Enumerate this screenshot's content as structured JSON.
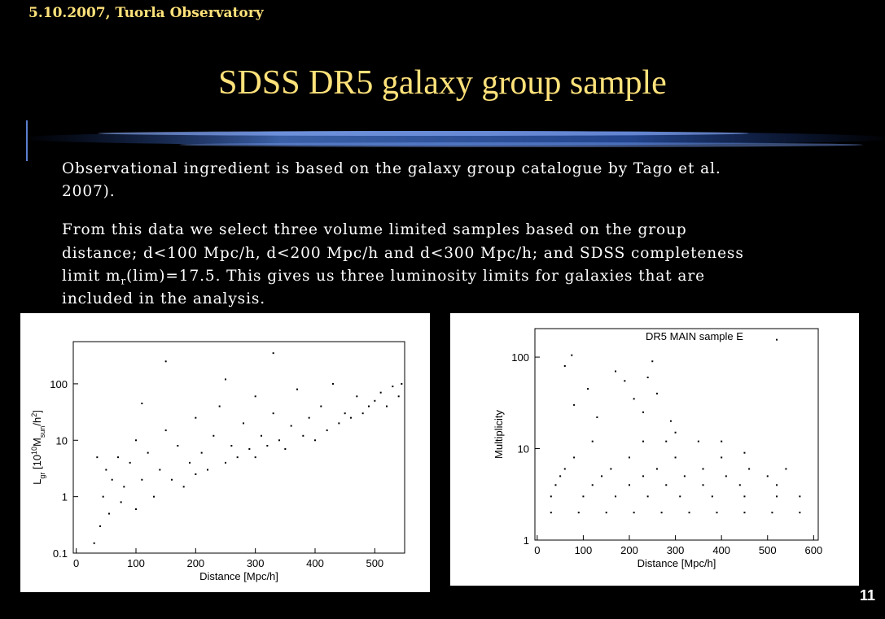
{
  "header": {
    "date": "5.10.2007, Tuorla Observatory",
    "title": "SDSS DR5 galaxy group sample"
  },
  "body": {
    "paragraphs": [
      {
        "lines": [
          "Observational ingredient is based on the galaxy group catalogue by Tago et al.",
          "2007)."
        ]
      },
      {
        "lines": [
          "From this data we select three volume limited samples based on the group",
          "distance; d<100 Mpc/h, d<200 Mpc/h and d<300 Mpc/h; and SDSS completeness",
          {
            "parts": [
              "limit m",
              "r",
              "(lim)=17.5. This gives us three luminosity limits for galaxies that are"
            ]
          },
          "included in the analysis."
        ]
      }
    ]
  },
  "page_number": 11,
  "chart_data": [
    {
      "type": "scatter",
      "y_label_parts": [
        "L",
        "gr",
        " [10",
        "10",
        "M",
        "sun",
        "/h",
        "2",
        "]"
      ],
      "x_label": "Distance [Mpc/h]",
      "log_y": true,
      "color": "#000000",
      "xlim": [
        -5,
        550
      ],
      "xticks": [
        0,
        100,
        200,
        300,
        400,
        500
      ],
      "ylim": [
        0.1,
        560
      ],
      "yticks": [
        0.1,
        1,
        10,
        100
      ],
      "x": [
        30,
        35,
        40,
        45,
        50,
        55,
        60,
        70,
        75,
        80,
        90,
        100,
        100,
        110,
        120,
        130,
        140,
        150,
        160,
        170,
        180,
        190,
        200,
        200,
        210,
        220,
        230,
        240,
        250,
        260,
        270,
        280,
        290,
        300,
        300,
        310,
        320,
        330,
        340,
        350,
        360,
        370,
        380,
        390,
        400,
        410,
        420,
        430,
        440,
        450,
        460,
        470,
        480,
        490,
        500,
        510,
        520,
        530,
        540,
        545,
        150,
        330,
        110,
        250
      ],
      "y": [
        0.15,
        5,
        0.3,
        1,
        3,
        0.5,
        2,
        5,
        0.8,
        1.5,
        4,
        10,
        0.6,
        2,
        6,
        1,
        3,
        15,
        2,
        8,
        1.5,
        4,
        25,
        2.5,
        6,
        3,
        12,
        40,
        4,
        8,
        5,
        20,
        7,
        60,
        5,
        12,
        8,
        30,
        10,
        7,
        18,
        80,
        12,
        25,
        10,
        40,
        15,
        100,
        20,
        30,
        25,
        60,
        30,
        40,
        50,
        70,
        40,
        90,
        60,
        100,
        250,
        350,
        45,
        120
      ]
    },
    {
      "type": "scatter",
      "title": "DR5 MAIN sample E",
      "y_label": "Multiplicity",
      "x_label": "Distance [Mpc/h]",
      "log_y": true,
      "color": "#000000",
      "xlim": [
        -5,
        610
      ],
      "xticks": [
        0,
        100,
        200,
        300,
        400,
        500,
        600
      ],
      "ylim": [
        1,
        205
      ],
      "yticks": [
        1,
        10,
        100
      ],
      "x": [
        30,
        90,
        150,
        210,
        270,
        330,
        390,
        450,
        510,
        570,
        30,
        100,
        170,
        240,
        310,
        380,
        450,
        520,
        570,
        40,
        120,
        200,
        280,
        360,
        440,
        520,
        50,
        140,
        230,
        320,
        410,
        500,
        60,
        160,
        260,
        360,
        460,
        80,
        200,
        300,
        400,
        120,
        230,
        280,
        350,
        75,
        80,
        60,
        190,
        240,
        250,
        260,
        230,
        290,
        170,
        130,
        300,
        400,
        450,
        540,
        520,
        110,
        210
      ],
      "y": [
        2,
        2,
        2,
        2,
        2,
        2,
        2,
        2,
        2,
        2,
        3,
        3,
        3,
        3,
        3,
        3,
        3,
        3,
        3,
        4,
        4,
        4,
        4,
        4,
        4,
        4,
        5,
        5,
        5,
        5,
        5,
        5,
        6,
        6,
        6,
        6,
        6,
        8,
        8,
        8,
        8,
        12,
        12,
        12,
        12,
        105,
        30,
        80,
        55,
        60,
        90,
        40,
        25,
        20,
        70,
        22,
        15,
        12,
        9,
        6,
        155,
        45,
        35
      ]
    }
  ]
}
